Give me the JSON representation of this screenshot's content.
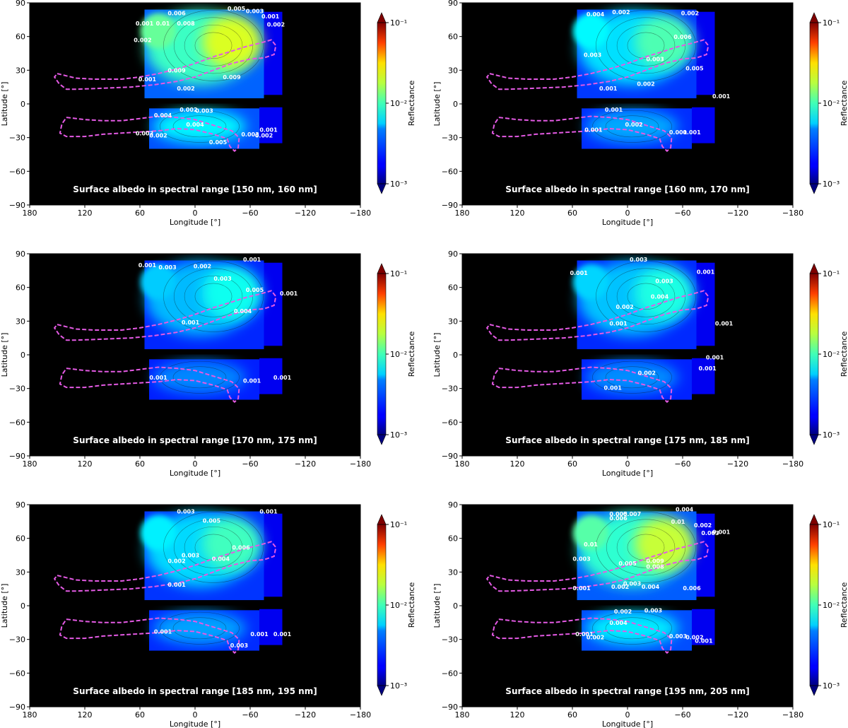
{
  "chart_data": [
    {
      "type": "heatmap",
      "title": "Surface albedo in spectral range [150 nm, 160 nm]",
      "xlabel": "Longitude [°]",
      "ylabel": "Latitude [°]",
      "xlim": [
        180,
        -180
      ],
      "ylim": [
        -90,
        90
      ],
      "xticks": [
        180,
        120,
        60,
        0,
        -60,
        -120,
        -180
      ],
      "yticks": [
        90,
        60,
        30,
        0,
        -30,
        -60,
        -90
      ],
      "colorbar": {
        "label": "Reflectance",
        "scale": "log",
        "min": 0.001,
        "max": 0.1,
        "ticks": [
          "10⁻³",
          "10⁻²",
          "10⁻¹"
        ]
      },
      "intensity": 0.85,
      "contour_labels": [
        {
          "lon": 20,
          "lat": 79,
          "text": "0.006"
        },
        {
          "lon": -45,
          "lat": 83,
          "text": "0.005"
        },
        {
          "lon": -65,
          "lat": 81,
          "text": "0.003"
        },
        {
          "lon": -82,
          "lat": 76,
          "text": "0.001"
        },
        {
          "lon": -88,
          "lat": 69,
          "text": "0.002"
        },
        {
          "lon": 35,
          "lat": 70,
          "text": "0.01"
        },
        {
          "lon": 10,
          "lat": 70,
          "text": "0.008"
        },
        {
          "lon": 55,
          "lat": 70,
          "text": "0.001"
        },
        {
          "lon": 57,
          "lat": 55,
          "text": "0.002"
        },
        {
          "lon": 20,
          "lat": 28,
          "text": "0.009"
        },
        {
          "lon": -40,
          "lat": 22,
          "text": "0.009"
        },
        {
          "lon": 10,
          "lat": 12,
          "text": "0.002"
        },
        {
          "lon": 52,
          "lat": 20,
          "text": "0.001"
        },
        {
          "lon": 7,
          "lat": -7,
          "text": "0.002"
        },
        {
          "lon": -10,
          "lat": -8,
          "text": "0.003"
        },
        {
          "lon": 35,
          "lat": -12,
          "text": "0.004"
        },
        {
          "lon": 0,
          "lat": -20,
          "text": "0.004"
        },
        {
          "lon": 55,
          "lat": -28,
          "text": "0.003"
        },
        {
          "lon": 40,
          "lat": -30,
          "text": "0.002"
        },
        {
          "lon": -25,
          "lat": -36,
          "text": "0.005"
        },
        {
          "lon": -60,
          "lat": -29,
          "text": "0.003"
        },
        {
          "lon": -75,
          "lat": -30,
          "text": "0.002"
        },
        {
          "lon": -80,
          "lat": -25,
          "text": "0.001"
        }
      ]
    },
    {
      "type": "heatmap",
      "title": "Surface albedo in spectral range [160 nm, 170 nm]",
      "xlabel": "Longitude [°]",
      "ylabel": "Latitude [°]",
      "xlim": [
        180,
        -180
      ],
      "ylim": [
        -90,
        90
      ],
      "xticks": [
        180,
        120,
        60,
        0,
        -60,
        -120,
        -180
      ],
      "yticks": [
        90,
        60,
        30,
        0,
        -30,
        -60,
        -90
      ],
      "colorbar": {
        "label": "Reflectance",
        "scale": "log",
        "min": 0.001,
        "max": 0.1,
        "ticks": [
          "10⁻³",
          "10⁻²",
          "10⁻¹"
        ]
      },
      "intensity": 0.5,
      "contour_labels": [
        {
          "lon": 35,
          "lat": 78,
          "text": "0.004"
        },
        {
          "lon": 7,
          "lat": 80,
          "text": "0.002"
        },
        {
          "lon": -68,
          "lat": 79,
          "text": "0.002"
        },
        {
          "lon": -60,
          "lat": 58,
          "text": "0.006"
        },
        {
          "lon": 38,
          "lat": 42,
          "text": "0.003"
        },
        {
          "lon": -30,
          "lat": 38,
          "text": "0.003"
        },
        {
          "lon": -73,
          "lat": 30,
          "text": "0.005"
        },
        {
          "lon": -20,
          "lat": 16,
          "text": "0.002"
        },
        {
          "lon": 21,
          "lat": 12,
          "text": "0.001"
        },
        {
          "lon": -102,
          "lat": 5,
          "text": "0.001"
        },
        {
          "lon": 15,
          "lat": -7,
          "text": "0.001"
        },
        {
          "lon": -7,
          "lat": -20,
          "text": "0.002"
        },
        {
          "lon": 37,
          "lat": -25,
          "text": "0.001"
        },
        {
          "lon": -55,
          "lat": -27,
          "text": "0.001"
        },
        {
          "lon": -70,
          "lat": -27,
          "text": "0.001"
        }
      ]
    },
    {
      "type": "heatmap",
      "title": "Surface albedo in spectral range [170 nm, 175 nm]",
      "xlabel": "Longitude [°]",
      "ylabel": "Latitude [°]",
      "xlim": [
        180,
        -180
      ],
      "ylim": [
        -90,
        90
      ],
      "xticks": [
        180,
        120,
        60,
        0,
        -60,
        -120,
        -180
      ],
      "yticks": [
        90,
        60,
        30,
        0,
        -30,
        -60,
        -90
      ],
      "colorbar": {
        "label": "Reflectance",
        "scale": "log",
        "min": 0.001,
        "max": 0.1,
        "ticks": [
          "10⁻³",
          "10⁻²",
          "10⁻¹"
        ]
      },
      "intensity": 0.35,
      "contour_labels": [
        {
          "lon": 52,
          "lat": 78,
          "text": "0.001"
        },
        {
          "lon": 30,
          "lat": 76,
          "text": "0.003"
        },
        {
          "lon": -8,
          "lat": 77,
          "text": "0.002"
        },
        {
          "lon": -62,
          "lat": 83,
          "text": "0.001"
        },
        {
          "lon": -30,
          "lat": 66,
          "text": "0.003"
        },
        {
          "lon": -65,
          "lat": 56,
          "text": "0.005"
        },
        {
          "lon": -102,
          "lat": 53,
          "text": "0.001"
        },
        {
          "lon": -52,
          "lat": 37,
          "text": "0.004"
        },
        {
          "lon": 5,
          "lat": 27,
          "text": "0.001"
        },
        {
          "lon": 40,
          "lat": -22,
          "text": "0.001"
        },
        {
          "lon": -62,
          "lat": -25,
          "text": "0.001"
        },
        {
          "lon": -95,
          "lat": -22,
          "text": "0.001"
        }
      ]
    },
    {
      "type": "heatmap",
      "title": "Surface albedo in spectral range [175 nm, 185 nm]",
      "xlabel": "Longitude [°]",
      "ylabel": "Latitude [°]",
      "xlim": [
        180,
        -180
      ],
      "ylim": [
        -90,
        90
      ],
      "xticks": [
        180,
        120,
        60,
        0,
        -60,
        -120,
        -180
      ],
      "yticks": [
        90,
        60,
        30,
        0,
        -30,
        -60,
        -90
      ],
      "colorbar": {
        "label": "Reflectance",
        "scale": "log",
        "min": 0.001,
        "max": 0.1,
        "ticks": [
          "10⁻³",
          "10⁻²",
          "10⁻¹"
        ]
      },
      "intensity": 0.38,
      "contour_labels": [
        {
          "lon": -12,
          "lat": 83,
          "text": "0.003"
        },
        {
          "lon": 53,
          "lat": 71,
          "text": "0.001"
        },
        {
          "lon": -85,
          "lat": 72,
          "text": "0.001"
        },
        {
          "lon": -40,
          "lat": 64,
          "text": "0.003"
        },
        {
          "lon": -35,
          "lat": 50,
          "text": "0.004"
        },
        {
          "lon": 3,
          "lat": 41,
          "text": "0.002"
        },
        {
          "lon": 10,
          "lat": 26,
          "text": "0.001"
        },
        {
          "lon": -105,
          "lat": 26,
          "text": "0.001"
        },
        {
          "lon": -95,
          "lat": -4,
          "text": "0.001"
        },
        {
          "lon": -87,
          "lat": -14,
          "text": "0.001"
        },
        {
          "lon": -21,
          "lat": -18,
          "text": "0.002"
        },
        {
          "lon": 16,
          "lat": -31,
          "text": "0.001"
        }
      ]
    },
    {
      "type": "heatmap",
      "title": "Surface albedo in spectral range [185 nm, 195 nm]",
      "xlabel": "Longitude [°]",
      "ylabel": "Latitude [°]",
      "xlim": [
        180,
        -180
      ],
      "ylim": [
        -90,
        90
      ],
      "xticks": [
        180,
        120,
        60,
        0,
        -60,
        -120,
        -180
      ],
      "yticks": [
        90,
        60,
        30,
        0,
        -30,
        -60,
        -90
      ],
      "colorbar": {
        "label": "Reflectance",
        "scale": "log",
        "min": 0.001,
        "max": 0.1,
        "ticks": [
          "10⁻³",
          "10⁻²",
          "10⁻¹"
        ]
      },
      "intensity": 0.47,
      "contour_labels": [
        {
          "lon": 10,
          "lat": 82,
          "text": "0.003"
        },
        {
          "lon": -80,
          "lat": 82,
          "text": "0.001"
        },
        {
          "lon": -18,
          "lat": 74,
          "text": "0.005"
        },
        {
          "lon": -50,
          "lat": 50,
          "text": "0.006"
        },
        {
          "lon": 5,
          "lat": 43,
          "text": "0.003"
        },
        {
          "lon": 20,
          "lat": 38,
          "text": "0.002"
        },
        {
          "lon": -28,
          "lat": 40,
          "text": "0.004"
        },
        {
          "lon": 20,
          "lat": 17,
          "text": "0.001"
        },
        {
          "lon": 35,
          "lat": -25,
          "text": "0.001"
        },
        {
          "lon": -70,
          "lat": -27,
          "text": "0.001"
        },
        {
          "lon": -95,
          "lat": -27,
          "text": "0.001"
        },
        {
          "lon": -48,
          "lat": -37,
          "text": "0.003"
        }
      ]
    },
    {
      "type": "heatmap",
      "title": "Surface albedo in spectral range [195 nm, 205 nm]",
      "xlabel": "Longitude [°]",
      "ylabel": "Latitude [°]",
      "xlim": [
        180,
        -180
      ],
      "ylim": [
        -90,
        90
      ],
      "xticks": [
        180,
        120,
        60,
        0,
        -60,
        -120,
        -180
      ],
      "yticks": [
        90,
        60,
        30,
        0,
        -30,
        -60,
        -90
      ],
      "colorbar": {
        "label": "Reflectance",
        "scale": "log",
        "min": 0.001,
        "max": 0.1,
        "ticks": [
          "10⁻³",
          "10⁻²",
          "10⁻¹"
        ]
      },
      "intensity": 0.8,
      "contour_labels": [
        {
          "lon": 10,
          "lat": 80,
          "text": "0.005"
        },
        {
          "lon": -5,
          "lat": 80,
          "text": "0.007"
        },
        {
          "lon": 10,
          "lat": 76,
          "text": "0.006"
        },
        {
          "lon": -62,
          "lat": 84,
          "text": "0.004"
        },
        {
          "lon": -55,
          "lat": 73,
          "text": "0.01"
        },
        {
          "lon": -82,
          "lat": 70,
          "text": "0.002"
        },
        {
          "lon": -90,
          "lat": 63,
          "text": "0.003"
        },
        {
          "lon": -102,
          "lat": 64,
          "text": "0.001"
        },
        {
          "lon": 40,
          "lat": 53,
          "text": "0.01"
        },
        {
          "lon": 50,
          "lat": 40,
          "text": "0.003"
        },
        {
          "lon": 0,
          "lat": 36,
          "text": "0.005"
        },
        {
          "lon": -30,
          "lat": 38,
          "text": "0.009"
        },
        {
          "lon": -30,
          "lat": 33,
          "text": "0.008"
        },
        {
          "lon": 8,
          "lat": 15,
          "text": "0.002"
        },
        {
          "lon": -5,
          "lat": 18,
          "text": "0.003"
        },
        {
          "lon": -25,
          "lat": 15,
          "text": "0.004"
        },
        {
          "lon": -70,
          "lat": 14,
          "text": "0.006"
        },
        {
          "lon": 50,
          "lat": 14,
          "text": "0.001"
        },
        {
          "lon": 5,
          "lat": -7,
          "text": "0.002"
        },
        {
          "lon": -28,
          "lat": -6,
          "text": "0.003"
        },
        {
          "lon": 10,
          "lat": -17,
          "text": "0.004"
        },
        {
          "lon": 47,
          "lat": -27,
          "text": "0.001"
        },
        {
          "lon": 35,
          "lat": -30,
          "text": "0.002"
        },
        {
          "lon": -55,
          "lat": -29,
          "text": "0.003"
        },
        {
          "lon": -73,
          "lat": -30,
          "text": "0.002"
        },
        {
          "lon": -83,
          "lat": -33,
          "text": "0.001"
        }
      ]
    }
  ]
}
